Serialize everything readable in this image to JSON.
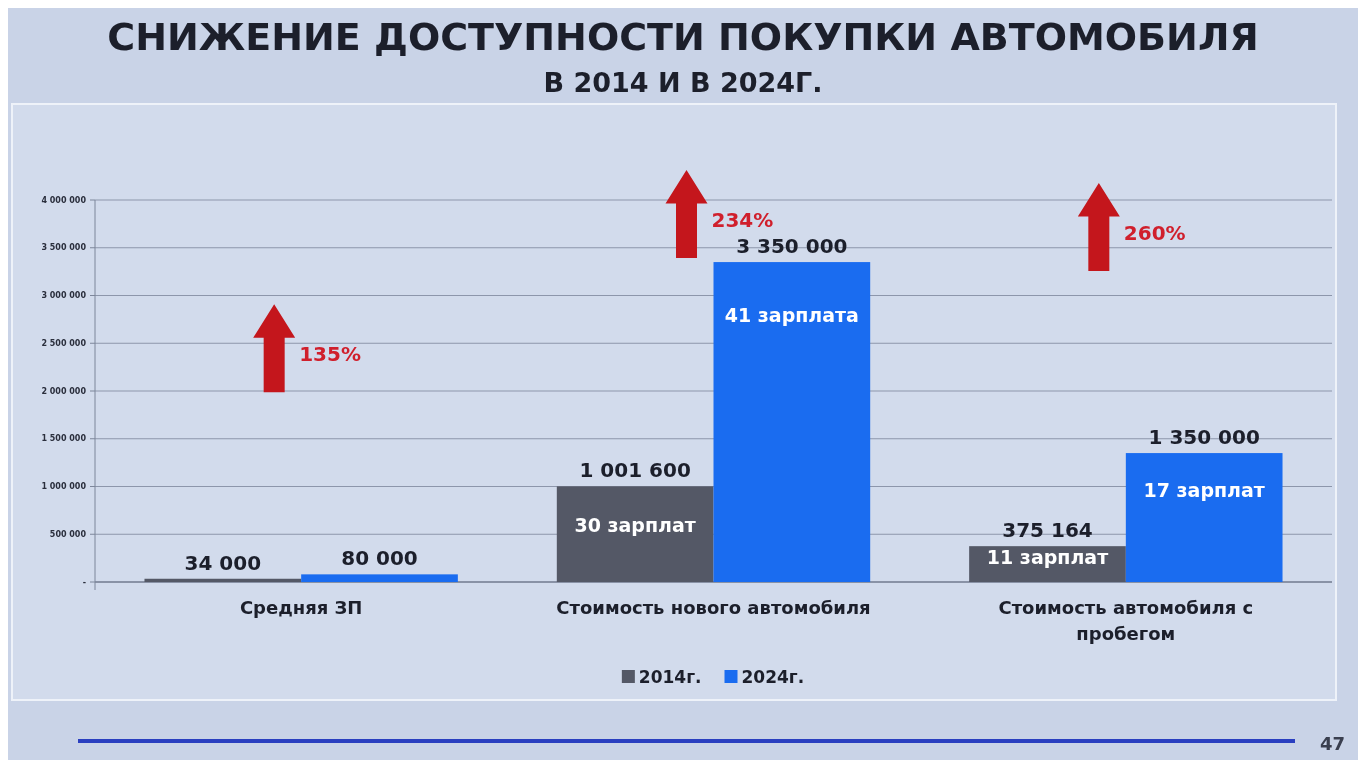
{
  "chart_data": {
    "type": "bar",
    "title": "СНИЖЕНИЕ ДОСТУПНОСТИ ПОКУПКИ АВТОМОБИЛЯ",
    "subtitle": "В 2014 И В 2024Г.",
    "categories": [
      "Средняя ЗП",
      "Стоимость нового автомобиля",
      "Стоимость автомобиля с пробегом"
    ],
    "series": [
      {
        "name": "2014г.",
        "color": "#545866",
        "values": [
          34000,
          1001600,
          375164
        ],
        "value_labels": [
          "34 000",
          "1 001 600",
          "375 164"
        ]
      },
      {
        "name": "2024г.",
        "color": "#1a6cf0",
        "values": [
          80000,
          3350000,
          1350000
        ],
        "value_labels": [
          "80 000",
          "3 350 000",
          "1 350 000"
        ]
      }
    ],
    "ylim": [
      0,
      4000000
    ],
    "yticks": [
      {
        "value": 0,
        "label": "-"
      },
      {
        "value": 500000,
        "label": "500 000"
      },
      {
        "value": 1000000,
        "label": "1 000 000"
      },
      {
        "value": 1500000,
        "label": "1 500 000"
      },
      {
        "value": 2000000,
        "label": "2 000 000"
      },
      {
        "value": 2500000,
        "label": "2 500 000"
      },
      {
        "value": 3000000,
        "label": "3 000 000"
      },
      {
        "value": 3500000,
        "label": "3 500 000"
      },
      {
        "value": 4000000,
        "label": "4 000 000"
      }
    ],
    "grid": "y",
    "legend": "bottom",
    "annotations": [
      "135%",
      "234%",
      "260%",
      {
        "text": "30 зарплат",
        "x": "Стоимость нового автомобиля",
        "y": 600000
      },
      {
        "text": "41 зарплата",
        "x": "Стоимость нового автомобиля",
        "y": 2800000
      },
      {
        "text": "11 зарплат",
        "x": "Стоимость автомобиля с пробегом",
        "y": 260000
      },
      {
        "text": "17 зарплат",
        "x": "Стоимость автомобиля с пробегом",
        "y": 960000
      },
      "47"
    ]
  }
}
